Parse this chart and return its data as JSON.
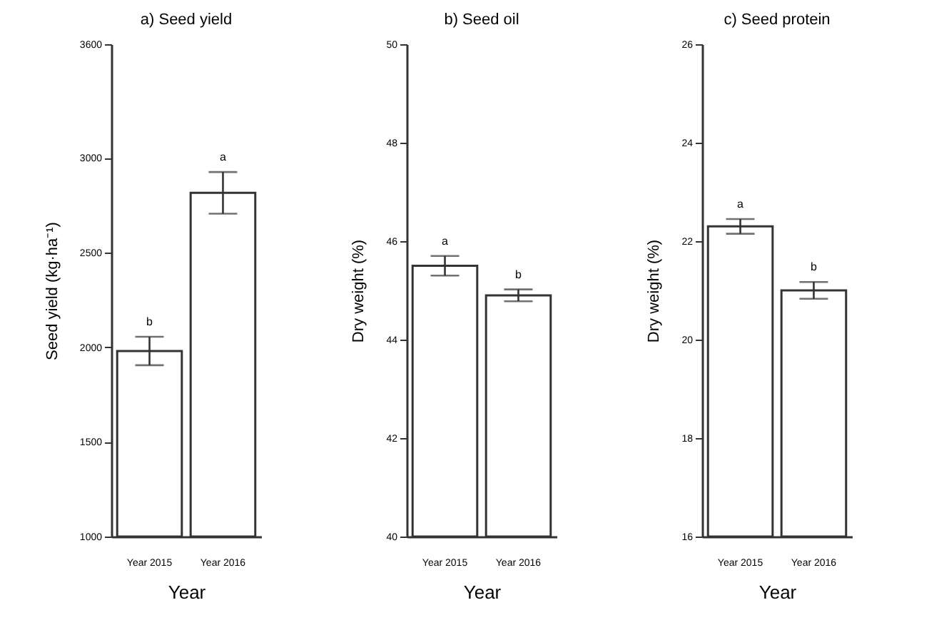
{
  "chart_data": [
    {
      "type": "bar",
      "title": "a) Seed yield",
      "xlabel": "Year",
      "ylabel": "Seed yield (kg·ha⁻¹)",
      "categories": [
        "Year 2015",
        "Year 2016"
      ],
      "values": [
        1980,
        2815
      ],
      "errors": [
        75,
        110
      ],
      "color": "#ffffff",
      "ylim": [
        1000,
        3600
      ],
      "yticks": [
        1000,
        1500,
        2000,
        2500,
        3000,
        3600
      ],
      "grid": false,
      "annotations": [
        {
          "text": "b",
          "x": "Year 2015",
          "y": 2055
        },
        {
          "text": "a",
          "x": "Year 2016",
          "y": 2925
        }
      ]
    },
    {
      "type": "bar",
      "title": "b) Seed oil",
      "xlabel": "Year",
      "ylabel": "Dry weight (%)",
      "categories": [
        "Year 2015",
        "Year 2016"
      ],
      "values": [
        45.5,
        44.9
      ],
      "errors": [
        0.2,
        0.12
      ],
      "color": "#ffffff",
      "ylim": [
        40,
        50
      ],
      "yticks": [
        40,
        42,
        44,
        46,
        48,
        50
      ],
      "grid": false,
      "annotations": [
        {
          "text": "a",
          "x": "Year 2015",
          "y": 45.7
        },
        {
          "text": "b",
          "x": "Year 2016",
          "y": 45.02
        }
      ]
    },
    {
      "type": "bar",
      "title": "c) Seed protein",
      "xlabel": "Year",
      "ylabel": "Dry weight (%)",
      "categories": [
        "Year 2015",
        "Year 2016"
      ],
      "values": [
        22.3,
        21.0
      ],
      "errors": [
        0.15,
        0.17
      ],
      "color": "#ffffff",
      "ylim": [
        16,
        26
      ],
      "yticks": [
        16,
        18,
        20,
        22,
        24,
        26
      ],
      "grid": false,
      "annotations": [
        {
          "text": "a",
          "x": "Year 2015",
          "y": 22.45
        },
        {
          "text": "b",
          "x": "Year 2016",
          "y": 21.17
        }
      ]
    }
  ]
}
